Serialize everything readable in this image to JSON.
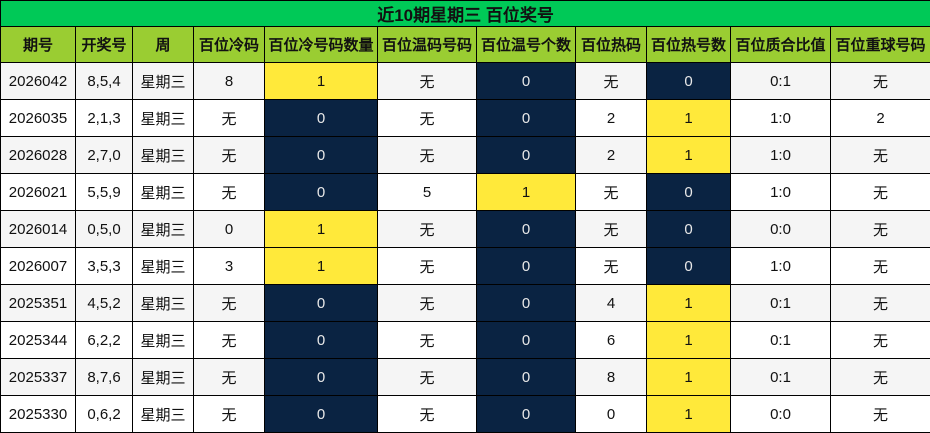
{
  "title": "近10期星期三 百位奖号",
  "colors": {
    "title_bg": "#00c957",
    "header_bg": "#9acd32",
    "highlight_yellow": "#ffe93a",
    "highlight_navy": "#0a2342"
  },
  "headers": [
    "期号",
    "开奖号",
    "周",
    "百位冷码",
    "百位冷号码数量",
    "百位温码号码",
    "百位温号个数",
    "百位热码",
    "百位热号数",
    "百位质合比值",
    "百位重球号码"
  ],
  "rows": [
    [
      "2026042",
      "8,5,4",
      "星期三",
      "8",
      "1",
      "无",
      "0",
      "无",
      "0",
      "0:1",
      "无"
    ],
    [
      "2026035",
      "2,1,3",
      "星期三",
      "无",
      "0",
      "无",
      "0",
      "2",
      "1",
      "1:0",
      "2"
    ],
    [
      "2026028",
      "2,7,0",
      "星期三",
      "无",
      "0",
      "无",
      "0",
      "2",
      "1",
      "1:0",
      "无"
    ],
    [
      "2026021",
      "5,5,9",
      "星期三",
      "无",
      "0",
      "5",
      "1",
      "无",
      "0",
      "1:0",
      "无"
    ],
    [
      "2026014",
      "0,5,0",
      "星期三",
      "0",
      "1",
      "无",
      "0",
      "无",
      "0",
      "0:0",
      "无"
    ],
    [
      "2026007",
      "3,5,3",
      "星期三",
      "3",
      "1",
      "无",
      "0",
      "无",
      "0",
      "1:0",
      "无"
    ],
    [
      "2025351",
      "4,5,2",
      "星期三",
      "无",
      "0",
      "无",
      "0",
      "4",
      "1",
      "0:1",
      "无"
    ],
    [
      "2025344",
      "6,2,2",
      "星期三",
      "无",
      "0",
      "无",
      "0",
      "6",
      "1",
      "0:1",
      "无"
    ],
    [
      "2025337",
      "8,7,6",
      "星期三",
      "无",
      "0",
      "无",
      "0",
      "8",
      "1",
      "0:1",
      "无"
    ],
    [
      "2025330",
      "0,6,2",
      "星期三",
      "无",
      "0",
      "无",
      "0",
      "0",
      "1",
      "0:0",
      "无"
    ]
  ]
}
